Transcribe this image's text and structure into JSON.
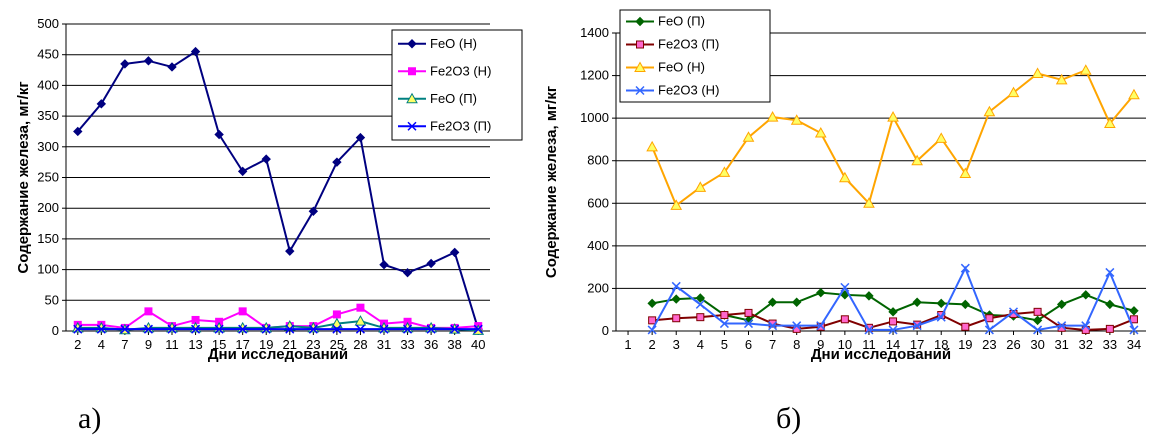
{
  "chart_data": [
    {
      "type": "line",
      "panel_label": "а)",
      "xlabel": "Дни исследований",
      "ylabel": "Содержание железа, мг/кг",
      "ylim": [
        0,
        500
      ],
      "yticks": [
        0,
        50,
        100,
        150,
        200,
        250,
        300,
        350,
        400,
        450,
        500
      ],
      "categories": [
        "2",
        "4",
        "7",
        "9",
        "11",
        "13",
        "15",
        "17",
        "19",
        "21",
        "23",
        "25",
        "28",
        "31",
        "33",
        "36",
        "38",
        "40"
      ],
      "legend_position": "top-right",
      "grid": "horizontal",
      "series": [
        {
          "name": "FeO (Н)",
          "color": "#000080",
          "marker": "diamond",
          "values": [
            325,
            370,
            435,
            440,
            430,
            455,
            320,
            260,
            280,
            130,
            195,
            275,
            315,
            108,
            95,
            110,
            128,
            3
          ]
        },
        {
          "name": "Fe2O3 (Н)",
          "color": "#FF00FF",
          "marker": "square",
          "values": [
            10,
            10,
            5,
            32,
            8,
            18,
            15,
            32,
            5,
            8,
            8,
            27,
            38,
            12,
            15,
            5,
            5,
            8
          ]
        },
        {
          "name": "FeO (П)",
          "color": "#008080",
          "marker": "triangle",
          "values": [
            5,
            5,
            2,
            5,
            5,
            5,
            5,
            5,
            5,
            8,
            5,
            12,
            16,
            5,
            5,
            5,
            3,
            1
          ]
        },
        {
          "name": "Fe2O3 (П)",
          "color": "#0000FF",
          "marker": "x",
          "values": [
            3,
            3,
            3,
            3,
            3,
            3,
            3,
            3,
            3,
            3,
            3,
            3,
            3,
            3,
            3,
            3,
            3,
            3
          ]
        }
      ]
    },
    {
      "type": "line",
      "panel_label": "б)",
      "xlabel": "Дни исследований",
      "ylabel": "Содержание железа, мг/кг",
      "ylim": [
        0,
        1400
      ],
      "yticks": [
        0,
        200,
        400,
        600,
        800,
        1000,
        1200,
        1400
      ],
      "categories": [
        "1",
        "2",
        "3",
        "4",
        "5",
        "6",
        "7",
        "8",
        "9",
        "10",
        "11",
        "14",
        "17",
        "18",
        "19",
        "23",
        "26",
        "30",
        "31",
        "32",
        "33",
        "34"
      ],
      "legend_position": "top-left",
      "grid": "horizontal",
      "series": [
        {
          "name": "FeO (П)",
          "color": "#006400",
          "marker": "diamond",
          "values": [
            null,
            130,
            150,
            155,
            75,
            50,
            135,
            135,
            180,
            170,
            165,
            90,
            135,
            130,
            125,
            75,
            70,
            50,
            125,
            170,
            125,
            95
          ]
        },
        {
          "name": "Fe2O3 (П)",
          "color": "#800000",
          "marker": "square",
          "values": [
            null,
            50,
            60,
            65,
            75,
            85,
            35,
            10,
            20,
            55,
            15,
            45,
            30,
            75,
            20,
            60,
            80,
            90,
            15,
            5,
            10,
            55
          ]
        },
        {
          "name": "FeO (Н)",
          "color": "#FFA500",
          "marker": "triangle",
          "values": [
            null,
            865,
            590,
            675,
            745,
            910,
            1005,
            990,
            930,
            720,
            600,
            1005,
            800,
            905,
            740,
            1030,
            1120,
            1210,
            1180,
            1225,
            975,
            1110
          ]
        },
        {
          "name": "Fe2O3 (Н)",
          "color": "#3366FF",
          "marker": "x",
          "values": [
            null,
            5,
            210,
            125,
            35,
            35,
            25,
            25,
            25,
            205,
            5,
            5,
            25,
            65,
            295,
            5,
            90,
            5,
            25,
            25,
            275,
            5
          ]
        }
      ]
    }
  ]
}
